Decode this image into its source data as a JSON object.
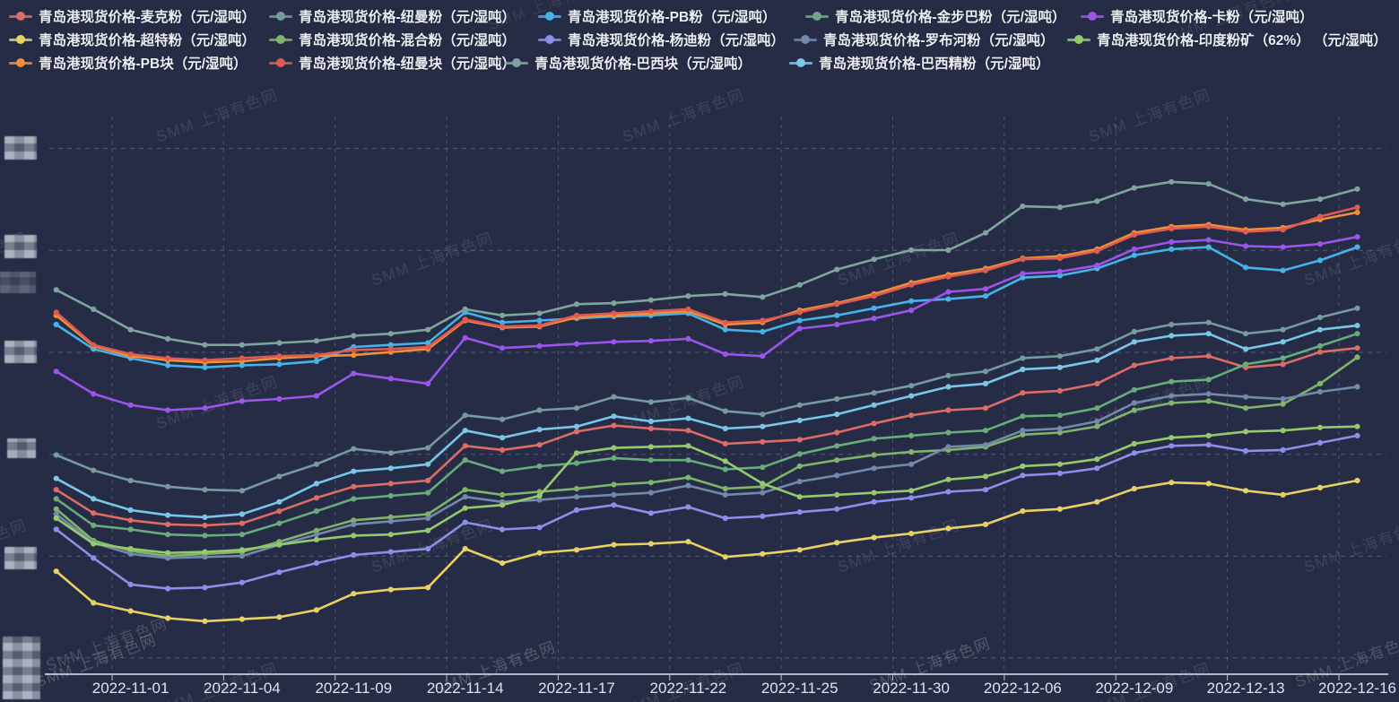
{
  "watermark": {
    "text": "SMM 上海有色网"
  },
  "legend": {
    "items": [
      {
        "id": "maikefen",
        "label": "青岛港现货价格-麦克粉（元/湿吨）",
        "color": "#dd6b66",
        "row": 0,
        "col": 0
      },
      {
        "id": "niumanfen",
        "label": "青岛港现货价格-纽曼粉（元/湿吨）",
        "color": "#759aa0",
        "row": 0,
        "col": 1
      },
      {
        "id": "pbfen",
        "label": "青岛港现货价格-PB粉（元/湿吨）",
        "color": "#45b2e8",
        "row": 0,
        "col": 2
      },
      {
        "id": "jinbubafen",
        "label": "青岛港现货价格-金步巴粉（元/湿吨）",
        "color": "#68ab7c",
        "row": 0,
        "col": 3
      },
      {
        "id": "kafen",
        "label": "青岛港现货价格-卡粉（元/湿吨）",
        "color": "#9b55ea",
        "row": 0,
        "col": 4
      },
      {
        "id": "chaotefen",
        "label": "青岛港现货价格-超特粉（元/湿吨）",
        "color": "#e8d164",
        "row": 1,
        "col": 0
      },
      {
        "id": "hunhefen",
        "label": "青岛港现货价格-混合粉（元/湿吨）",
        "color": "#7fb46a",
        "row": 1,
        "col": 1
      },
      {
        "id": "yangdifen",
        "label": "青岛港现货价格-杨迪粉（元/湿吨）",
        "color": "#8c8fe8",
        "row": 1,
        "col": 2
      },
      {
        "id": "luobuhefen",
        "label": "青岛港现货价格-罗布河粉（元/湿吨）",
        "color": "#7289ab",
        "row": 1,
        "col": 3
      },
      {
        "id": "yindufenkuang",
        "label": "青岛港现货价格-印度粉矿（62%） （元/湿吨）",
        "color": "#94c96c",
        "row": 1,
        "col": 4
      },
      {
        "id": "pbkuai",
        "label": "青岛港现货价格-PB块（元/湿吨）",
        "color": "#ee9036",
        "row": 2,
        "col": 0
      },
      {
        "id": "niumankuai",
        "label": "青岛港现货价格-纽曼块（元/湿吨）",
        "color": "#dd5b54",
        "row": 2,
        "col": 1
      },
      {
        "id": "baxikuai",
        "label": "青岛港现货价格-巴西块（元/湿吨）",
        "color": "#7ea59d",
        "row": 2,
        "col": 2
      },
      {
        "id": "baxijingfen",
        "label": "青岛港现货价格-巴西精粉（元/湿吨）",
        "color": "#79c6e8",
        "row": 2,
        "col": 3
      }
    ]
  },
  "x_axis": {
    "labels": [
      "2022-11-01",
      "2022-11-04",
      "2022-11-09",
      "2022-11-14",
      "2022-11-17",
      "2022-11-22",
      "2022-11-25",
      "2022-11-30",
      "2022-12-06",
      "2022-12-09",
      "2022-12-13",
      "2022-12-16"
    ]
  },
  "y_axis": {
    "redacted": true,
    "note": "Y-axis tick labels are pixelated/blurred (mosaic) in the source image; numeric scale below is an assumption.",
    "assumed_gridline_values": [
      400,
      500,
      600,
      700,
      800,
      900
    ]
  },
  "chart_data": {
    "type": "line",
    "title": "",
    "xlabel": "",
    "ylabel": "元/湿吨",
    "grid": "dashed",
    "legend_position": "top",
    "n_points": 36,
    "x_labels": [
      "2022-11-01",
      "2022-11-04",
      "2022-11-09",
      "2022-11-14",
      "2022-11-17",
      "2022-11-22",
      "2022-11-25",
      "2022-11-30",
      "2022-12-06",
      "2022-12-09",
      "2022-12-13",
      "2022-12-16"
    ],
    "x_label_point_indices": [
      2,
      5,
      8,
      11,
      14,
      17,
      20,
      23,
      26,
      29,
      32,
      35
    ],
    "ylim": [
      390,
      930
    ],
    "values_are_estimates": true,
    "series": [
      {
        "name": "青岛港现货价格-麦克粉（元/湿吨）",
        "color": "#dd6b66",
        "values": [
          565,
          542,
          535,
          531,
          530,
          532,
          544,
          557,
          568,
          571,
          574,
          608,
          604,
          609,
          622,
          628,
          625,
          623,
          610,
          612,
          614,
          621,
          630,
          638,
          643,
          645,
          660,
          662,
          669,
          687,
          694,
          696,
          685,
          688,
          700,
          704
        ]
      },
      {
        "name": "青岛港现货价格-纽曼粉（元/湿吨）",
        "color": "#759aa0",
        "values": [
          599,
          584,
          574,
          568,
          565,
          564,
          578,
          590,
          605,
          601,
          606,
          638,
          634,
          643,
          645,
          656,
          651,
          655,
          642,
          639,
          648,
          654,
          660,
          667,
          677,
          681,
          694,
          696,
          703,
          720,
          727,
          729,
          718,
          722,
          734,
          743
        ]
      },
      {
        "name": "青岛港现货价格-PB粉（元/湿吨）",
        "color": "#45b2e8",
        "values": [
          727,
          703,
          694,
          687,
          685,
          687,
          688,
          691,
          705,
          707,
          709,
          739,
          729,
          731,
          733,
          735,
          736,
          738,
          722,
          720,
          731,
          736,
          743,
          750,
          752,
          755,
          773,
          775,
          782,
          795,
          801,
          803,
          783,
          780,
          790,
          803
        ]
      },
      {
        "name": "青岛港现货价格-金步巴粉（元/湿吨）",
        "color": "#68ab7c",
        "values": [
          556,
          530,
          526,
          521,
          520,
          521,
          532,
          544,
          556,
          559,
          562,
          594,
          583,
          588,
          591,
          596,
          594,
          594,
          585,
          587,
          600,
          608,
          615,
          618,
          621,
          623,
          637,
          638,
          645,
          663,
          671,
          673,
          688,
          694,
          706,
          718
        ]
      },
      {
        "name": "青岛港现货价格-卡粉（元/湿吨）",
        "color": "#9b55ea",
        "values": [
          681,
          659,
          648,
          643,
          645,
          652,
          654,
          657,
          679,
          674,
          669,
          714,
          704,
          706,
          708,
          710,
          711,
          713,
          698,
          696,
          723,
          727,
          733,
          741,
          759,
          762,
          777,
          779,
          785,
          801,
          808,
          810,
          804,
          803,
          806,
          813
        ]
      },
      {
        "name": "青岛港现货价格-超特粉（元/湿吨）",
        "color": "#e8d164",
        "values": [
          485,
          454,
          446,
          439,
          436,
          438,
          440,
          447,
          463,
          467,
          469,
          507,
          493,
          503,
          506,
          511,
          512,
          514,
          499,
          502,
          506,
          513,
          518,
          522,
          527,
          531,
          544,
          546,
          553,
          566,
          572,
          571,
          564,
          560,
          567,
          574
        ]
      },
      {
        "name": "青岛港现货价格-混合粉（元/湿吨）",
        "color": "#7fb46a",
        "values": [
          546,
          515,
          505,
          500,
          502,
          504,
          514,
          525,
          535,
          538,
          541,
          565,
          560,
          563,
          566,
          570,
          572,
          577,
          566,
          568,
          588,
          594,
          599,
          602,
          604,
          607,
          619,
          621,
          627,
          643,
          650,
          652,
          645,
          649,
          669,
          695
        ]
      },
      {
        "name": "青岛港现货价格-杨迪粉（元/湿吨）",
        "color": "#8c8fe8",
        "values": [
          526,
          498,
          472,
          468,
          469,
          474,
          484,
          493,
          501,
          504,
          507,
          533,
          526,
          528,
          545,
          550,
          542,
          548,
          537,
          539,
          543,
          546,
          553,
          557,
          563,
          565,
          579,
          581,
          586,
          601,
          608,
          609,
          603,
          604,
          611,
          618
        ]
      },
      {
        "name": "青岛港现货价格-罗布河粉（元/湿吨）",
        "color": "#7289ab",
        "values": [
          541,
          513,
          502,
          498,
          499,
          500,
          511,
          521,
          531,
          534,
          537,
          558,
          553,
          555,
          558,
          560,
          562,
          569,
          560,
          562,
          573,
          579,
          586,
          590,
          607,
          609,
          623,
          625,
          632,
          650,
          657,
          659,
          656,
          654,
          661,
          666
        ]
      },
      {
        "name": "青岛港现货价格-印度粉矿（62%） （元/湿吨）",
        "color": "#94c96c",
        "values": [
          537,
          512,
          507,
          503,
          504,
          506,
          511,
          516,
          520,
          521,
          525,
          547,
          550,
          559,
          601,
          606,
          607,
          608,
          593,
          571,
          558,
          560,
          562,
          564,
          575,
          578,
          588,
          590,
          595,
          610,
          616,
          618,
          622,
          623,
          626,
          627
        ]
      },
      {
        "name": "青岛港现货价格-PB块（元/湿吨）",
        "color": "#ee9036",
        "values": [
          736,
          706,
          696,
          692,
          690,
          691,
          694,
          696,
          697,
          700,
          703,
          731,
          724,
          725,
          734,
          736,
          738,
          740,
          727,
          729,
          741,
          748,
          757,
          768,
          776,
          782,
          792,
          794,
          801,
          817,
          823,
          825,
          820,
          822,
          830,
          837
        ]
      },
      {
        "name": "青岛港现货价格-纽曼块（元/湿吨）",
        "color": "#dd5b54",
        "values": [
          739,
          707,
          698,
          694,
          692,
          694,
          696,
          697,
          702,
          703,
          705,
          732,
          725,
          726,
          736,
          738,
          740,
          742,
          729,
          731,
          739,
          747,
          755,
          766,
          774,
          780,
          791,
          792,
          799,
          815,
          821,
          823,
          818,
          820,
          833,
          842
        ]
      },
      {
        "name": "青岛港现货价格-巴西块（元/湿吨）",
        "color": "#7ea59d",
        "values": [
          761,
          742,
          722,
          713,
          707,
          707,
          709,
          711,
          716,
          718,
          722,
          742,
          736,
          738,
          747,
          748,
          751,
          755,
          757,
          754,
          766,
          781,
          791,
          800,
          800,
          817,
          843,
          842,
          848,
          861,
          867,
          865,
          850,
          845,
          850,
          860
        ]
      },
      {
        "name": "青岛港现货价格-巴西精粉（元/湿吨）",
        "color": "#79c6e8",
        "values": [
          576,
          556,
          545,
          540,
          538,
          541,
          553,
          571,
          583,
          586,
          590,
          623,
          616,
          624,
          627,
          637,
          632,
          635,
          625,
          627,
          633,
          639,
          648,
          657,
          666,
          669,
          683,
          685,
          692,
          710,
          716,
          718,
          703,
          710,
          722,
          726
        ]
      }
    ]
  }
}
